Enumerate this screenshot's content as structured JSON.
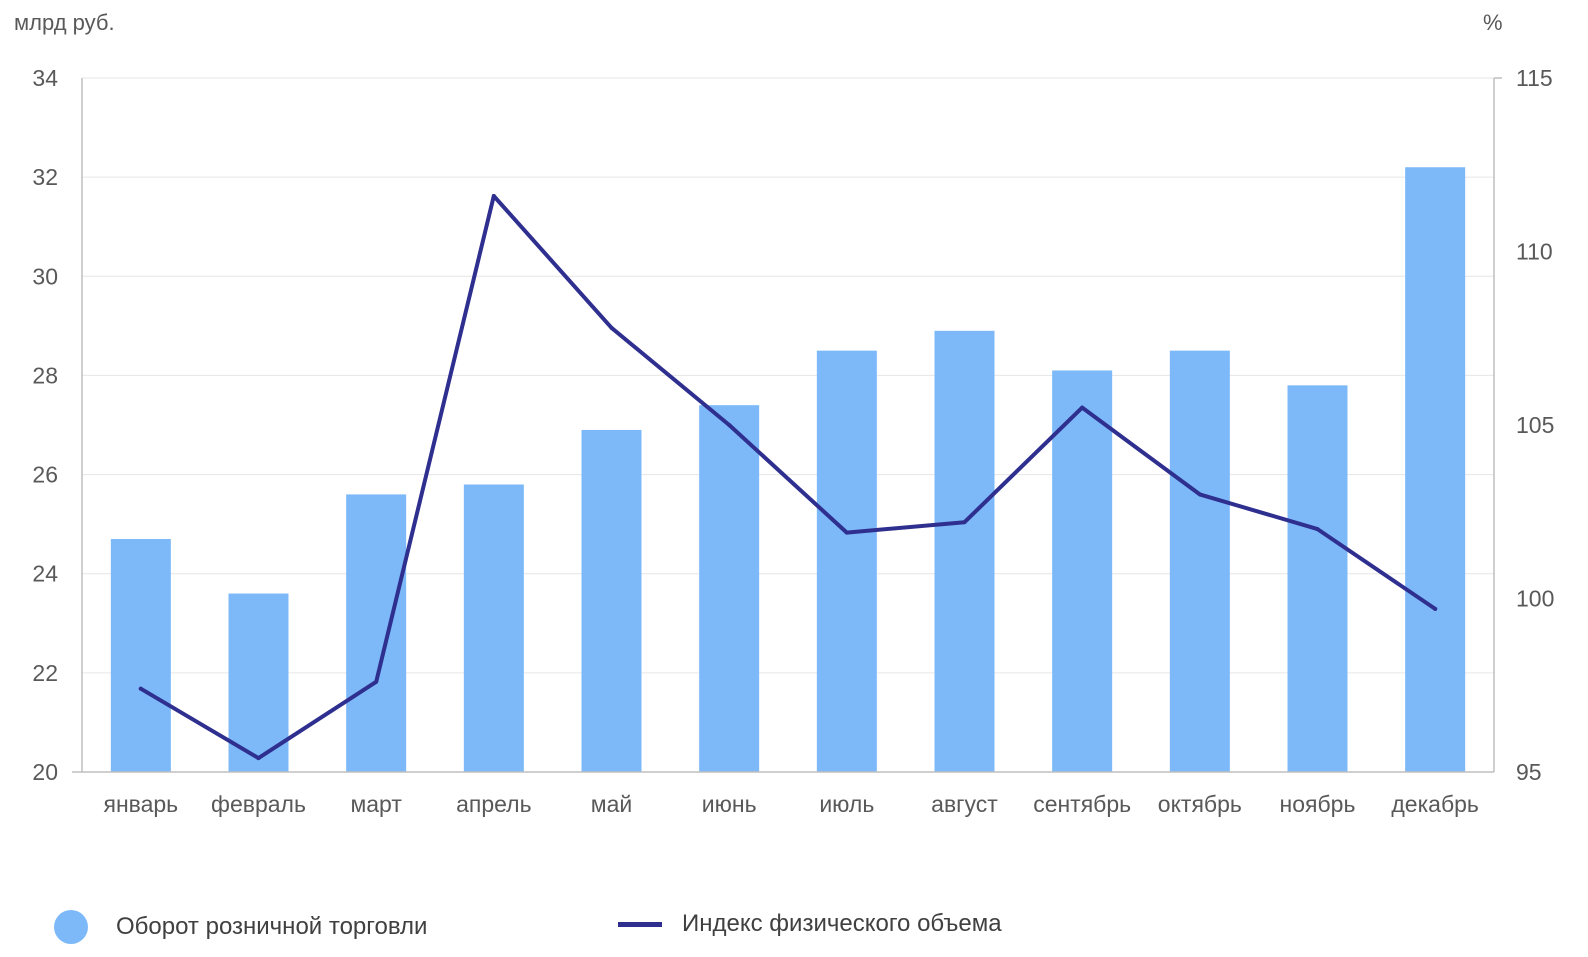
{
  "chart_data": {
    "type": "bar",
    "categories": [
      "январь",
      "февраль",
      "март",
      "апрель",
      "май",
      "июнь",
      "июль",
      "август",
      "сентябрь",
      "октябрь",
      "ноябрь",
      "декабрь"
    ],
    "left_axis": {
      "label": "млрд руб.",
      "min": 20,
      "max": 34,
      "step": 2,
      "ticks": [
        "20",
        "22",
        "24",
        "26",
        "28",
        "30",
        "32",
        "34"
      ]
    },
    "right_axis": {
      "label": "%",
      "min": 95,
      "max": 115,
      "step": 5,
      "ticks": [
        "95",
        "100",
        "105",
        "110",
        "115"
      ]
    },
    "series": [
      {
        "name": "Оборот розничной торговли",
        "type": "bar",
        "axis": "left",
        "color": "#7DB9F8",
        "values": [
          24.7,
          23.6,
          25.6,
          25.8,
          26.9,
          27.4,
          28.5,
          28.9,
          28.1,
          28.5,
          27.8,
          32.2
        ]
      },
      {
        "name": "Индекс физического объема",
        "type": "line",
        "axis": "right",
        "color": "#2E2F8F",
        "values": [
          97.4,
          95.4,
          97.6,
          111.6,
          107.8,
          105.0,
          101.9,
          102.2,
          105.5,
          103.0,
          102.0,
          99.7
        ]
      }
    ],
    "grid": true,
    "legend_position": "bottom"
  }
}
